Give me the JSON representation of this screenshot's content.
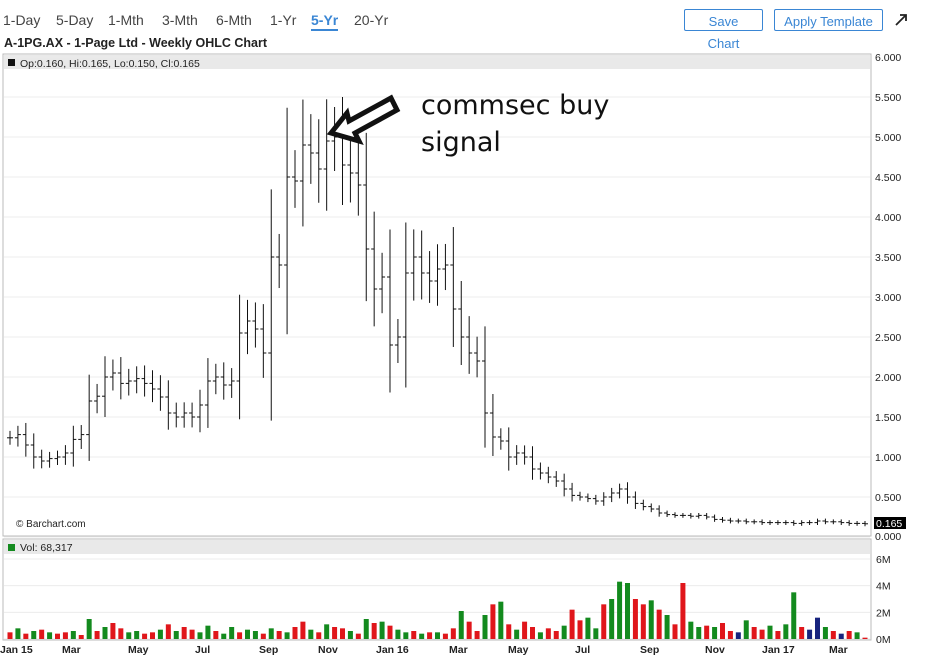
{
  "toolbar": {
    "ranges": [
      "1-Day",
      "5-Day",
      "1-Mth",
      "3-Mth",
      "6-Mth",
      "1-Yr",
      "5-Yr",
      "20-Yr"
    ],
    "active_range": "5-Yr",
    "save_label": "Save Chart",
    "apply_label": "Apply Template",
    "accent_color": "#3a86d4"
  },
  "chart_title": "A-1PG.AX - 1-Page Ltd - Weekly OHLC Chart",
  "price_legend": "Op:0.160, Hi:0.165, Lo:0.150, Cl:0.165",
  "volume_legend": "Vol: 68,317",
  "credit": "© Barchart.com",
  "last_price_label": "0.165",
  "annotation": {
    "line1": "commsec buy",
    "line2": "signal"
  },
  "colors": {
    "up_volume": "#138a1e",
    "down_volume": "#e0161b",
    "flat_volume": "#17237e",
    "bar_line": "#111111",
    "legend_band": "#e9e9e9",
    "axis_label_bg": "#000000"
  },
  "chart_data": {
    "type": "ohlc",
    "title": "A-1PG.AX - 1-Page Ltd - Weekly OHLC Chart",
    "price_axis": {
      "ylim": [
        0,
        6
      ],
      "ticks": [
        "0.000",
        "0.500",
        "1.000",
        "1.500",
        "2.000",
        "2.500",
        "3.000",
        "3.500",
        "4.000",
        "4.500",
        "5.000",
        "5.500",
        "6.000"
      ]
    },
    "volume_axis": {
      "ylim": [
        0,
        6
      ],
      "unit": "M",
      "ticks": [
        "0M",
        "2M",
        "4M",
        "6M"
      ]
    },
    "x_labels": [
      "Jan 15",
      "Mar",
      "May",
      "Jul",
      "Sep",
      "Nov",
      "Jan 16",
      "Mar",
      "May",
      "Jul",
      "Sep",
      "Nov",
      "Jan 17",
      "Mar"
    ],
    "grid": true,
    "weekly_close": [
      1.24,
      1.28,
      1.15,
      1.0,
      0.95,
      0.98,
      1.0,
      1.05,
      1.22,
      1.28,
      1.7,
      1.76,
      2.0,
      2.05,
      1.92,
      1.95,
      1.98,
      1.92,
      1.85,
      1.75,
      1.55,
      1.5,
      1.55,
      1.5,
      1.65,
      1.95,
      2.0,
      1.9,
      1.95,
      2.55,
      2.7,
      2.6,
      2.3,
      3.5,
      3.4,
      4.5,
      4.45,
      4.9,
      4.8,
      4.6,
      4.95,
      5.0,
      4.65,
      4.55,
      4.4,
      3.6,
      3.1,
      3.25,
      2.4,
      2.5,
      3.3,
      3.5,
      3.3,
      3.2,
      3.35,
      3.4,
      2.85,
      2.5,
      2.3,
      2.2,
      1.55,
      1.25,
      1.2,
      1.0,
      1.05,
      1.0,
      0.85,
      0.8,
      0.75,
      0.7,
      0.6,
      0.52,
      0.5,
      0.48,
      0.45,
      0.5,
      0.55,
      0.6,
      0.5,
      0.42,
      0.38,
      0.35,
      0.3,
      0.28,
      0.27,
      0.27,
      0.26,
      0.27,
      0.25,
      0.22,
      0.21,
      0.2,
      0.2,
      0.19,
      0.19,
      0.18,
      0.18,
      0.18,
      0.18,
      0.17,
      0.18,
      0.18,
      0.2,
      0.19,
      0.19,
      0.18,
      0.17,
      0.17,
      0.165
    ],
    "weekly_volume_m": [
      0.5,
      0.8,
      0.4,
      0.6,
      0.7,
      0.5,
      0.4,
      0.5,
      0.6,
      0.3,
      1.5,
      0.6,
      0.9,
      1.2,
      0.8,
      0.5,
      0.6,
      0.4,
      0.5,
      0.7,
      1.1,
      0.6,
      0.9,
      0.7,
      0.5,
      1.0,
      0.6,
      0.4,
      0.9,
      0.5,
      0.7,
      0.6,
      0.4,
      0.8,
      0.6,
      0.5,
      0.9,
      1.3,
      0.7,
      0.5,
      1.1,
      0.9,
      0.8,
      0.6,
      0.4,
      1.5,
      1.2,
      1.3,
      1.0,
      0.7,
      0.5,
      0.6,
      0.4,
      0.5,
      0.5,
      0.4,
      0.8,
      2.1,
      1.3,
      0.6,
      1.8,
      2.6,
      2.8,
      1.1,
      0.7,
      1.3,
      0.9,
      0.5,
      0.8,
      0.6,
      1.0,
      2.2,
      1.4,
      1.6,
      0.8,
      2.6,
      3.0,
      4.3,
      4.2,
      3.0,
      2.6,
      2.9,
      2.2,
      1.8,
      1.1,
      4.2,
      1.3,
      0.9,
      1.0,
      0.9,
      1.2,
      0.6,
      0.5,
      1.4,
      0.9,
      0.7,
      1.0,
      0.6,
      1.1,
      3.5,
      0.9,
      0.7,
      1.6,
      0.9,
      0.6,
      0.4,
      0.6,
      0.5,
      0.1
    ],
    "volume_direction": [
      "d",
      "u",
      "d",
      "u",
      "d",
      "u",
      "d",
      "d",
      "u",
      "d",
      "u",
      "d",
      "u",
      "d",
      "d",
      "u",
      "u",
      "d",
      "d",
      "u",
      "d",
      "u",
      "d",
      "d",
      "u",
      "u",
      "d",
      "u",
      "u",
      "d",
      "u",
      "u",
      "d",
      "u",
      "d",
      "u",
      "d",
      "d",
      "u",
      "d",
      "u",
      "d",
      "d",
      "u",
      "d",
      "u",
      "d",
      "u",
      "d",
      "u",
      "u",
      "d",
      "u",
      "d",
      "u",
      "d",
      "d",
      "u",
      "d",
      "d",
      "u",
      "d",
      "u",
      "d",
      "u",
      "d",
      "d",
      "u",
      "d",
      "d",
      "u",
      "d",
      "d",
      "u",
      "u",
      "d",
      "u",
      "u",
      "u",
      "d",
      "d",
      "u",
      "d",
      "u",
      "d",
      "d",
      "u",
      "u",
      "d",
      "u",
      "d",
      "d",
      "f",
      "u",
      "d",
      "d",
      "u",
      "d",
      "u",
      "u",
      "d",
      "f",
      "f",
      "u",
      "d",
      "f",
      "d",
      "u",
      "d"
    ]
  }
}
